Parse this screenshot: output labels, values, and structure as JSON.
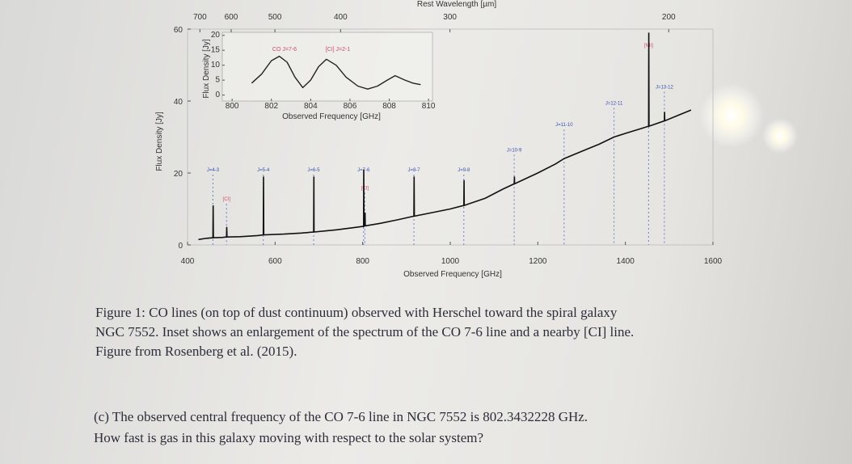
{
  "figure": {
    "top_axis_label": "Rest Wavelength [µm]",
    "top_ticks": [
      700,
      600,
      500,
      400,
      300,
      200
    ],
    "xlabel": "Observed Frequency [GHz]",
    "ylabel": "Flux Density [Jy]",
    "xlim": [
      400,
      1600
    ],
    "ylim": [
      0,
      60
    ],
    "xticks": [
      400,
      600,
      800,
      1000,
      1200,
      1400,
      1600
    ],
    "yticks": [
      0,
      20,
      40,
      60
    ],
    "spectrum": {
      "color": "#111111",
      "x": [
        425,
        440,
        458,
        458.5,
        459,
        480,
        489,
        489.5,
        490,
        520,
        560,
        573,
        573.5,
        574,
        620,
        660,
        688,
        688.5,
        689,
        740,
        780,
        802,
        802.5,
        803,
        805,
        805.5,
        806,
        840,
        880,
        917,
        917.5,
        918,
        960,
        1000,
        1031,
        1031.5,
        1032,
        1080,
        1120,
        1146,
        1146.5,
        1147,
        1200,
        1240,
        1260,
        1300,
        1340,
        1374,
        1400,
        1440,
        1453,
        1453.5,
        1454,
        1489,
        1489.5,
        1490,
        1520,
        1550
      ],
      "values": [
        1.5,
        1.8,
        2,
        11,
        2,
        2.1,
        2.2,
        5,
        2.2,
        2.3,
        2.6,
        2.8,
        19,
        2.8,
        3,
        3.3,
        3.6,
        19,
        3.6,
        4.2,
        4.8,
        5.2,
        21,
        5.2,
        5.3,
        9,
        5.3,
        6,
        7,
        8,
        19,
        8,
        9,
        10,
        11,
        18,
        11,
        13,
        15.5,
        17,
        19,
        17,
        20,
        22.5,
        24,
        26,
        28,
        30,
        31,
        32.5,
        33,
        59,
        33,
        34.5,
        37,
        34.5,
        36,
        37.5
      ]
    },
    "lines": [
      {
        "label": "J=4-3",
        "x": 458
      },
      {
        "label": "J=5-4",
        "x": 573
      },
      {
        "label": "J=6-5",
        "x": 688
      },
      {
        "label": "J=7-6",
        "x": 802
      },
      {
        "label": "J=8-7",
        "x": 917
      },
      {
        "label": "J=9-8",
        "x": 1031
      },
      {
        "label": "J=10-9",
        "x": 1146
      },
      {
        "label": "J=11-10",
        "x": 1260
      },
      {
        "label": "J=12-11",
        "x": 1374
      },
      {
        "label": "J=13-12",
        "x": 1489
      },
      {
        "label": "[CI]",
        "x": 489
      },
      {
        "label": "[CI]",
        "x": 805
      },
      {
        "label": "[NII]",
        "x": 1453
      }
    ],
    "inset": {
      "xlabel": "Observed Frequency [GHz]",
      "ylabel": "Flux Density [Jy]",
      "xlim": [
        799.5,
        810.2
      ],
      "ylim": [
        -2,
        21
      ],
      "xticks": [
        800,
        802,
        804,
        806,
        808,
        810
      ],
      "yticks": [
        0,
        5,
        10,
        15,
        20
      ],
      "labels": [
        "CO J=7-6",
        "[CI] J=2-1"
      ],
      "x": [
        801,
        801.5,
        802,
        802.4,
        802.8,
        803.2,
        803.6,
        804,
        804.4,
        804.8,
        805.3,
        805.8,
        806.4,
        806.9,
        807.4,
        807.9,
        808.3,
        808.8,
        809.2,
        809.6
      ],
      "values": [
        4,
        7,
        11.5,
        13,
        11,
        6,
        2.5,
        5,
        9.5,
        12,
        10,
        6,
        3,
        2,
        3,
        5,
        6.5,
        5,
        4,
        3.5
      ]
    }
  },
  "caption": [
    "Figure 1: CO lines (on top of dust continuum) observed with Herschel toward the spiral galaxy",
    "NGC 7552. Inset shows an enlargement of the spectrum of the CO 7-6 line and a nearby [CI] line.",
    "Figure from Rosenberg et al. (2015)."
  ],
  "question": [
    "(c) The observed central frequency of the CO 7-6 line in NGC 7552 is 802.3432228 GHz.",
    "How fast is gas in this galaxy moving with respect to the solar system?"
  ]
}
